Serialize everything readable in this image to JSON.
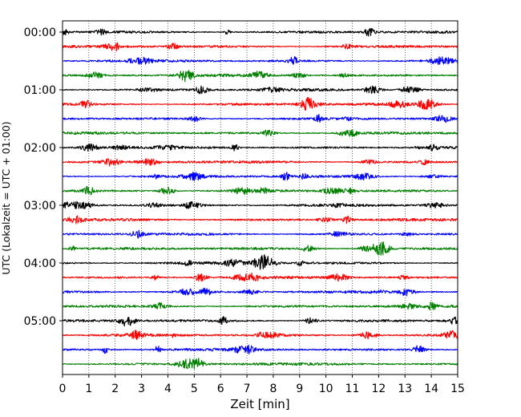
{
  "chart_data": {
    "type": "line",
    "title": "",
    "xlabel": "Zeit  [min]",
    "ylabel": "UTC (Lokalzeit = UTC + 01:00)",
    "xlim": [
      0,
      15
    ],
    "x_ticks": [
      "0",
      "1",
      "2",
      "3",
      "4",
      "5",
      "6",
      "7",
      "8",
      "9",
      "10",
      "11",
      "12",
      "13",
      "14",
      "15"
    ],
    "y_ticks": [
      "00:00",
      "01:00",
      "02:00",
      "03:00",
      "04:00",
      "05:00"
    ],
    "rows_per_hour": 4,
    "minutes_per_row": 15,
    "grid": "vertical dotted lines at each minute",
    "legend": "none",
    "trace_colors": [
      "#000000",
      "#ff0000",
      "#0000ff",
      "#008000"
    ],
    "series": [
      {
        "label": "00:00",
        "color": "#000000"
      },
      {
        "label": "00:15",
        "color": "#ff0000"
      },
      {
        "label": "00:30",
        "color": "#0000ff"
      },
      {
        "label": "00:45",
        "color": "#008000"
      },
      {
        "label": "01:00",
        "color": "#000000"
      },
      {
        "label": "01:15",
        "color": "#ff0000"
      },
      {
        "label": "01:30",
        "color": "#0000ff"
      },
      {
        "label": "01:45",
        "color": "#008000"
      },
      {
        "label": "02:00",
        "color": "#000000"
      },
      {
        "label": "02:15",
        "color": "#ff0000"
      },
      {
        "label": "02:30",
        "color": "#0000ff"
      },
      {
        "label": "02:45",
        "color": "#008000"
      },
      {
        "label": "03:00",
        "color": "#000000"
      },
      {
        "label": "03:15",
        "color": "#ff0000"
      },
      {
        "label": "03:30",
        "color": "#0000ff"
      },
      {
        "label": "03:45",
        "color": "#008000"
      },
      {
        "label": "04:00",
        "color": "#000000"
      },
      {
        "label": "04:15",
        "color": "#ff0000"
      },
      {
        "label": "04:30",
        "color": "#0000ff"
      },
      {
        "label": "04:45",
        "color": "#008000"
      },
      {
        "label": "05:00",
        "color": "#000000"
      },
      {
        "label": "05:15",
        "color": "#ff0000"
      },
      {
        "label": "05:30",
        "color": "#0000ff"
      },
      {
        "label": "05:45",
        "color": "#008000"
      }
    ]
  }
}
